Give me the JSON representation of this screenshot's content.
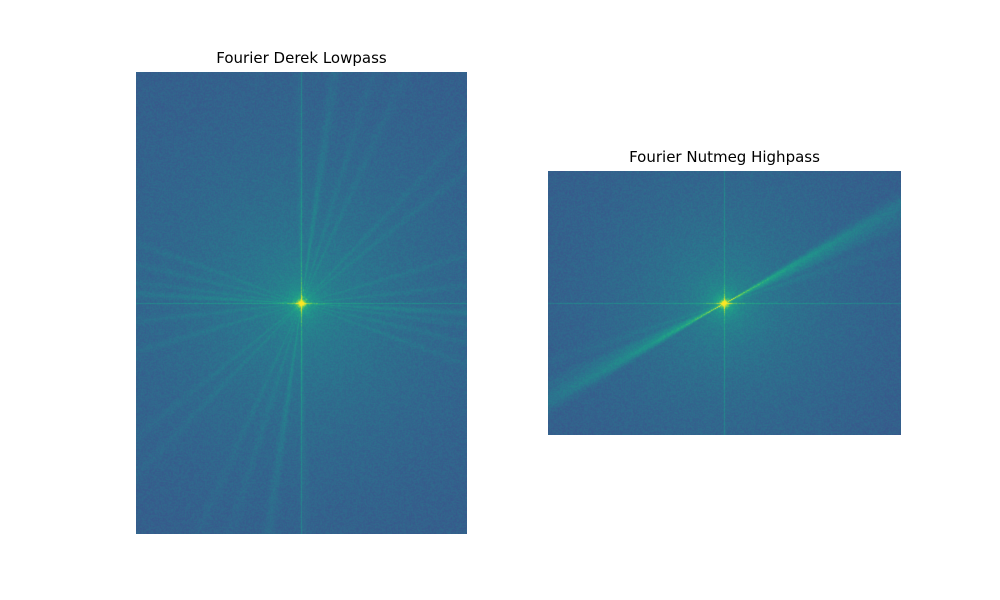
{
  "panels": [
    {
      "title": "Fourier Derek Lowpass",
      "colormap": "viridis",
      "background_color": "#365c8d",
      "axis_line_color": "#22c38a",
      "center_color": "#c8e020",
      "streaks": "radial"
    },
    {
      "title": "Fourier Nutmeg Highpass",
      "colormap": "viridis",
      "background_color": "#365c8d",
      "axis_line_color": "#22c38a",
      "center_color": "#c8e020",
      "streaks": "diagonal"
    }
  ]
}
